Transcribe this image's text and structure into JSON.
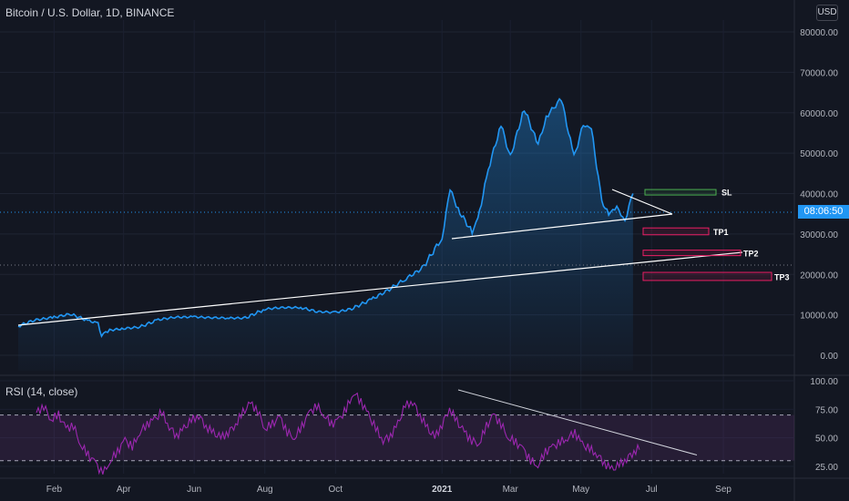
{
  "header": {
    "title": "Bitcoin / U.S. Dollar, 1D, BINANCE",
    "currency": "USD"
  },
  "rsi_panel": {
    "title": "RSI (14, close)"
  },
  "price_label": "08:06:50",
  "colors": {
    "background": "#131722",
    "price_line": "#2196f3",
    "rsi_line": "#9c27b0",
    "rsi_band": "#7e3f8f",
    "trendline": "#ffffff",
    "sl_box": "#4caf50",
    "tp_box": "#e91e63"
  },
  "chart_data": [
    {
      "type": "line",
      "series": [
        {
          "x": [
            "2020-01-01",
            "2020-01-15",
            "2020-02-01",
            "2020-02-15",
            "2020-03-01",
            "2020-03-10",
            "2020-03-13",
            "2020-03-20",
            "2020-04-01",
            "2020-04-15",
            "2020-05-01",
            "2020-05-15",
            "2020-06-01",
            "2020-06-15",
            "2020-07-01",
            "2020-07-15",
            "2020-08-01",
            "2020-08-15",
            "2020-09-01",
            "2020-09-15",
            "2020-10-01",
            "2020-10-15",
            "2020-11-01",
            "2020-11-15",
            "2020-12-01",
            "2020-12-15",
            "2021-01-01",
            "2021-01-08",
            "2021-01-15",
            "2021-01-27",
            "2021-02-01",
            "2021-02-10",
            "2021-02-21",
            "2021-03-01",
            "2021-03-13",
            "2021-03-25",
            "2021-04-01",
            "2021-04-14",
            "2021-04-25",
            "2021-05-03",
            "2021-05-10",
            "2021-05-19",
            "2021-05-25",
            "2021-06-01",
            "2021-06-08",
            "2021-06-15"
          ],
          "values": [
            7200,
            8700,
            9400,
            10200,
            8600,
            7900,
            5000,
            6200,
            6600,
            7000,
            8800,
            9400,
            9500,
            9300,
            9200,
            9200,
            11400,
            11800,
            11800,
            10800,
            10600,
            11500,
            13800,
            16000,
            19000,
            21500,
            29000,
            41000,
            36000,
            30500,
            33500,
            46000,
            57000,
            49000,
            61000,
            52000,
            59000,
            63500,
            49000,
            57000,
            56000,
            38000,
            35000,
            36500,
            33500,
            40000
          ]
        }
      ],
      "xlabel": "",
      "ylabel": "",
      "x_tick_labels": [
        "Feb",
        "Apr",
        "Jun",
        "Aug",
        "Oct",
        "2021",
        "Mar",
        "May",
        "Jul",
        "Sep"
      ],
      "y_tick_labels": [
        "0.00",
        "10000.00",
        "20000.00",
        "30000.00",
        "40000.00",
        "50000.00",
        "60000.00",
        "70000.00",
        "80000.00"
      ],
      "ylim": [
        -3000,
        85000
      ],
      "annotations": [
        {
          "label": "SL",
          "low": 40000,
          "high": 41000
        },
        {
          "label": "TP1",
          "low": 29800,
          "high": 31500
        },
        {
          "label": "TP2",
          "low": 24800,
          "high": 26000
        },
        {
          "label": "TP3",
          "low": 18500,
          "high": 20500
        }
      ],
      "grid": true
    },
    {
      "type": "line",
      "series": [
        {
          "values": [
            72,
            78,
            66,
            70,
            58,
            61,
            44,
            35,
            28,
            18,
            30,
            38,
            48,
            42,
            55,
            62,
            66,
            72,
            60,
            52,
            58,
            65,
            70,
            60,
            54,
            50,
            55,
            62,
            72,
            80,
            74,
            58,
            62,
            68,
            55,
            50,
            60,
            72,
            78,
            70,
            62,
            66,
            75,
            90,
            82,
            70,
            58,
            48,
            52,
            62,
            78,
            82,
            70,
            58,
            50,
            62,
            76,
            64,
            55,
            48,
            45,
            60,
            70,
            62,
            50,
            46,
            40,
            30,
            26,
            38,
            42,
            46,
            50,
            55,
            44,
            40,
            36,
            28,
            22,
            26,
            32,
            38,
            42
          ]
        }
      ],
      "y_tick_labels": [
        "25.00",
        "50.00",
        "75.00",
        "100.00"
      ],
      "ylim": [
        18,
        100
      ],
      "bands": [
        30,
        70
      ],
      "grid": true
    }
  ]
}
